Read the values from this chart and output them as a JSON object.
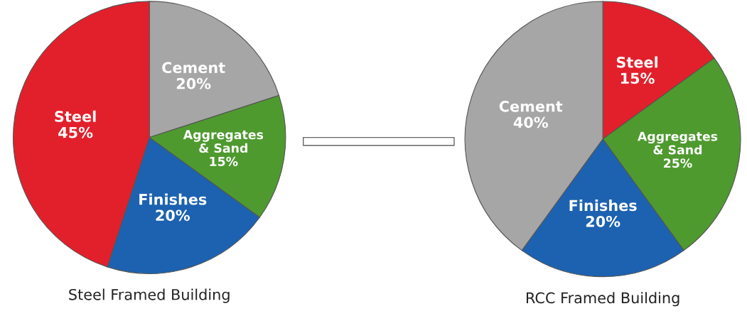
{
  "chart_data": [
    {
      "type": "pie",
      "title": "Steel Framed Building",
      "categories": [
        "Cement",
        "Aggregates\n& Sand",
        "Finishes",
        "Steel"
      ],
      "values": [
        20,
        15,
        20,
        45
      ],
      "value_labels": [
        "20%",
        "15%",
        "20%",
        "45%"
      ],
      "colors": [
        "#a6a6a6",
        "#4e9a2f",
        "#1c62b0",
        "#e2202b"
      ]
    },
    {
      "type": "pie",
      "title": "RCC Framed Building",
      "categories": [
        "Steel",
        "Aggregates\n& Sand",
        "Finishes",
        "Cement"
      ],
      "values": [
        15,
        25,
        20,
        40
      ],
      "value_labels": [
        "15%",
        "25%",
        "20%",
        "40%"
      ],
      "colors": [
        "#e2202b",
        "#4e9a2f",
        "#1c62b0",
        "#a6a6a6"
      ]
    }
  ]
}
